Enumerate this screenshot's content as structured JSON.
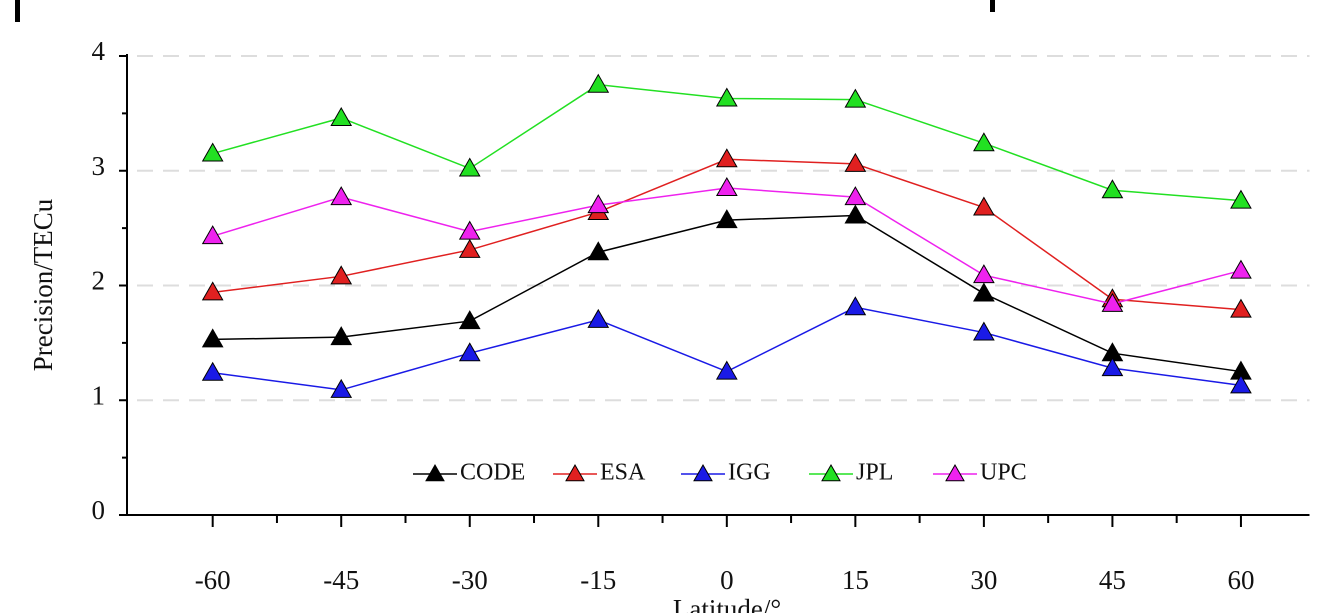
{
  "chart_data": {
    "type": "line",
    "x_label": "Latitude/°",
    "y_label": "Precision/TECu",
    "x": [
      -60,
      -45,
      -30,
      -15,
      0,
      15,
      30,
      45,
      60
    ],
    "series": [
      {
        "name": "CODE",
        "color": "#000000",
        "values": [
          1.53,
          1.55,
          1.69,
          2.29,
          2.57,
          2.61,
          1.93,
          1.41,
          1.25
        ]
      },
      {
        "name": "ESA",
        "color": "#e02020",
        "values": [
          1.94,
          2.08,
          2.31,
          2.64,
          3.1,
          3.06,
          2.68,
          1.88,
          1.79
        ]
      },
      {
        "name": "IGG",
        "color": "#1a1ae6",
        "values": [
          1.24,
          1.09,
          1.41,
          1.7,
          1.25,
          1.81,
          1.59,
          1.28,
          1.13
        ]
      },
      {
        "name": "JPL",
        "color": "#22e022",
        "values": [
          3.15,
          3.46,
          3.02,
          3.75,
          3.63,
          3.62,
          3.24,
          2.83,
          2.74
        ]
      },
      {
        "name": "UPC",
        "color": "#ee22ee",
        "values": [
          2.43,
          2.77,
          2.47,
          2.7,
          2.85,
          2.77,
          2.09,
          1.84,
          2.13
        ]
      }
    ],
    "xlim": [
      -70,
      68
    ],
    "xticks": [
      -60,
      -45,
      -30,
      -15,
      0,
      15,
      30,
      45,
      60
    ],
    "ylim": [
      0,
      4
    ],
    "yticks": [
      0,
      1,
      2,
      3,
      4
    ],
    "grid": true,
    "legend": "bottom"
  }
}
